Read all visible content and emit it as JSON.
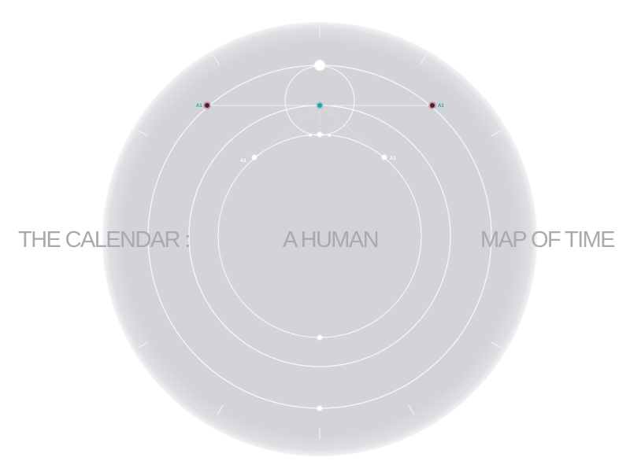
{
  "title": {
    "part1": "THE CALENDAR :",
    "part2": "A HUMAN",
    "part3": "MAP OF TIME"
  },
  "markers": {
    "top_left": "A1",
    "top_right": "A1",
    "inner_left": "A1",
    "inner_right": "A1"
  },
  "colors": {
    "background": "#ffffff",
    "disc": "#d3d4d8",
    "ring": "#f4f5f7",
    "title": "#a8aaae",
    "teal": "#1fa3a3",
    "maroon": "#6e1f33"
  }
}
